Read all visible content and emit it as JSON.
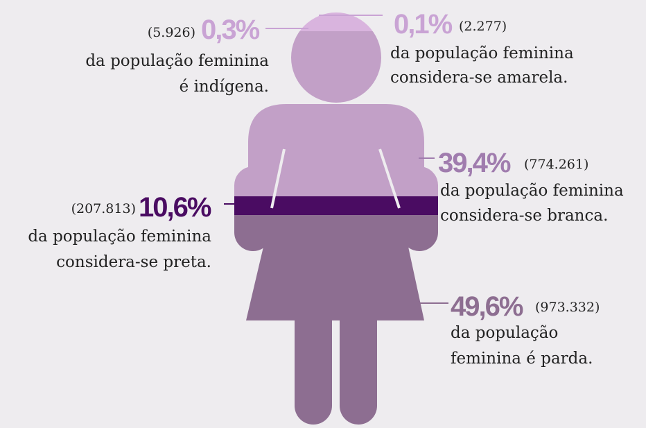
{
  "items": [
    {
      "count": "(5.926)",
      "percent": "0,3%",
      "text": [
        "da população feminina",
        "é indígena."
      ]
    },
    {
      "count": "(2.277)",
      "percent": "0,1%",
      "text": [
        "da população feminina",
        "considera-se amarela."
      ]
    },
    {
      "count": "(774.261)",
      "percent": "39,4%",
      "text": [
        "da população feminina",
        "considera-se branca."
      ]
    },
    {
      "count": "(207.813)",
      "percent": "10,6%",
      "text": [
        "da população feminina",
        "considera-se preta."
      ]
    },
    {
      "count": "(973.332)",
      "percent": "49,6%",
      "text": [
        "da população",
        "feminina é parda."
      ]
    }
  ]
}
